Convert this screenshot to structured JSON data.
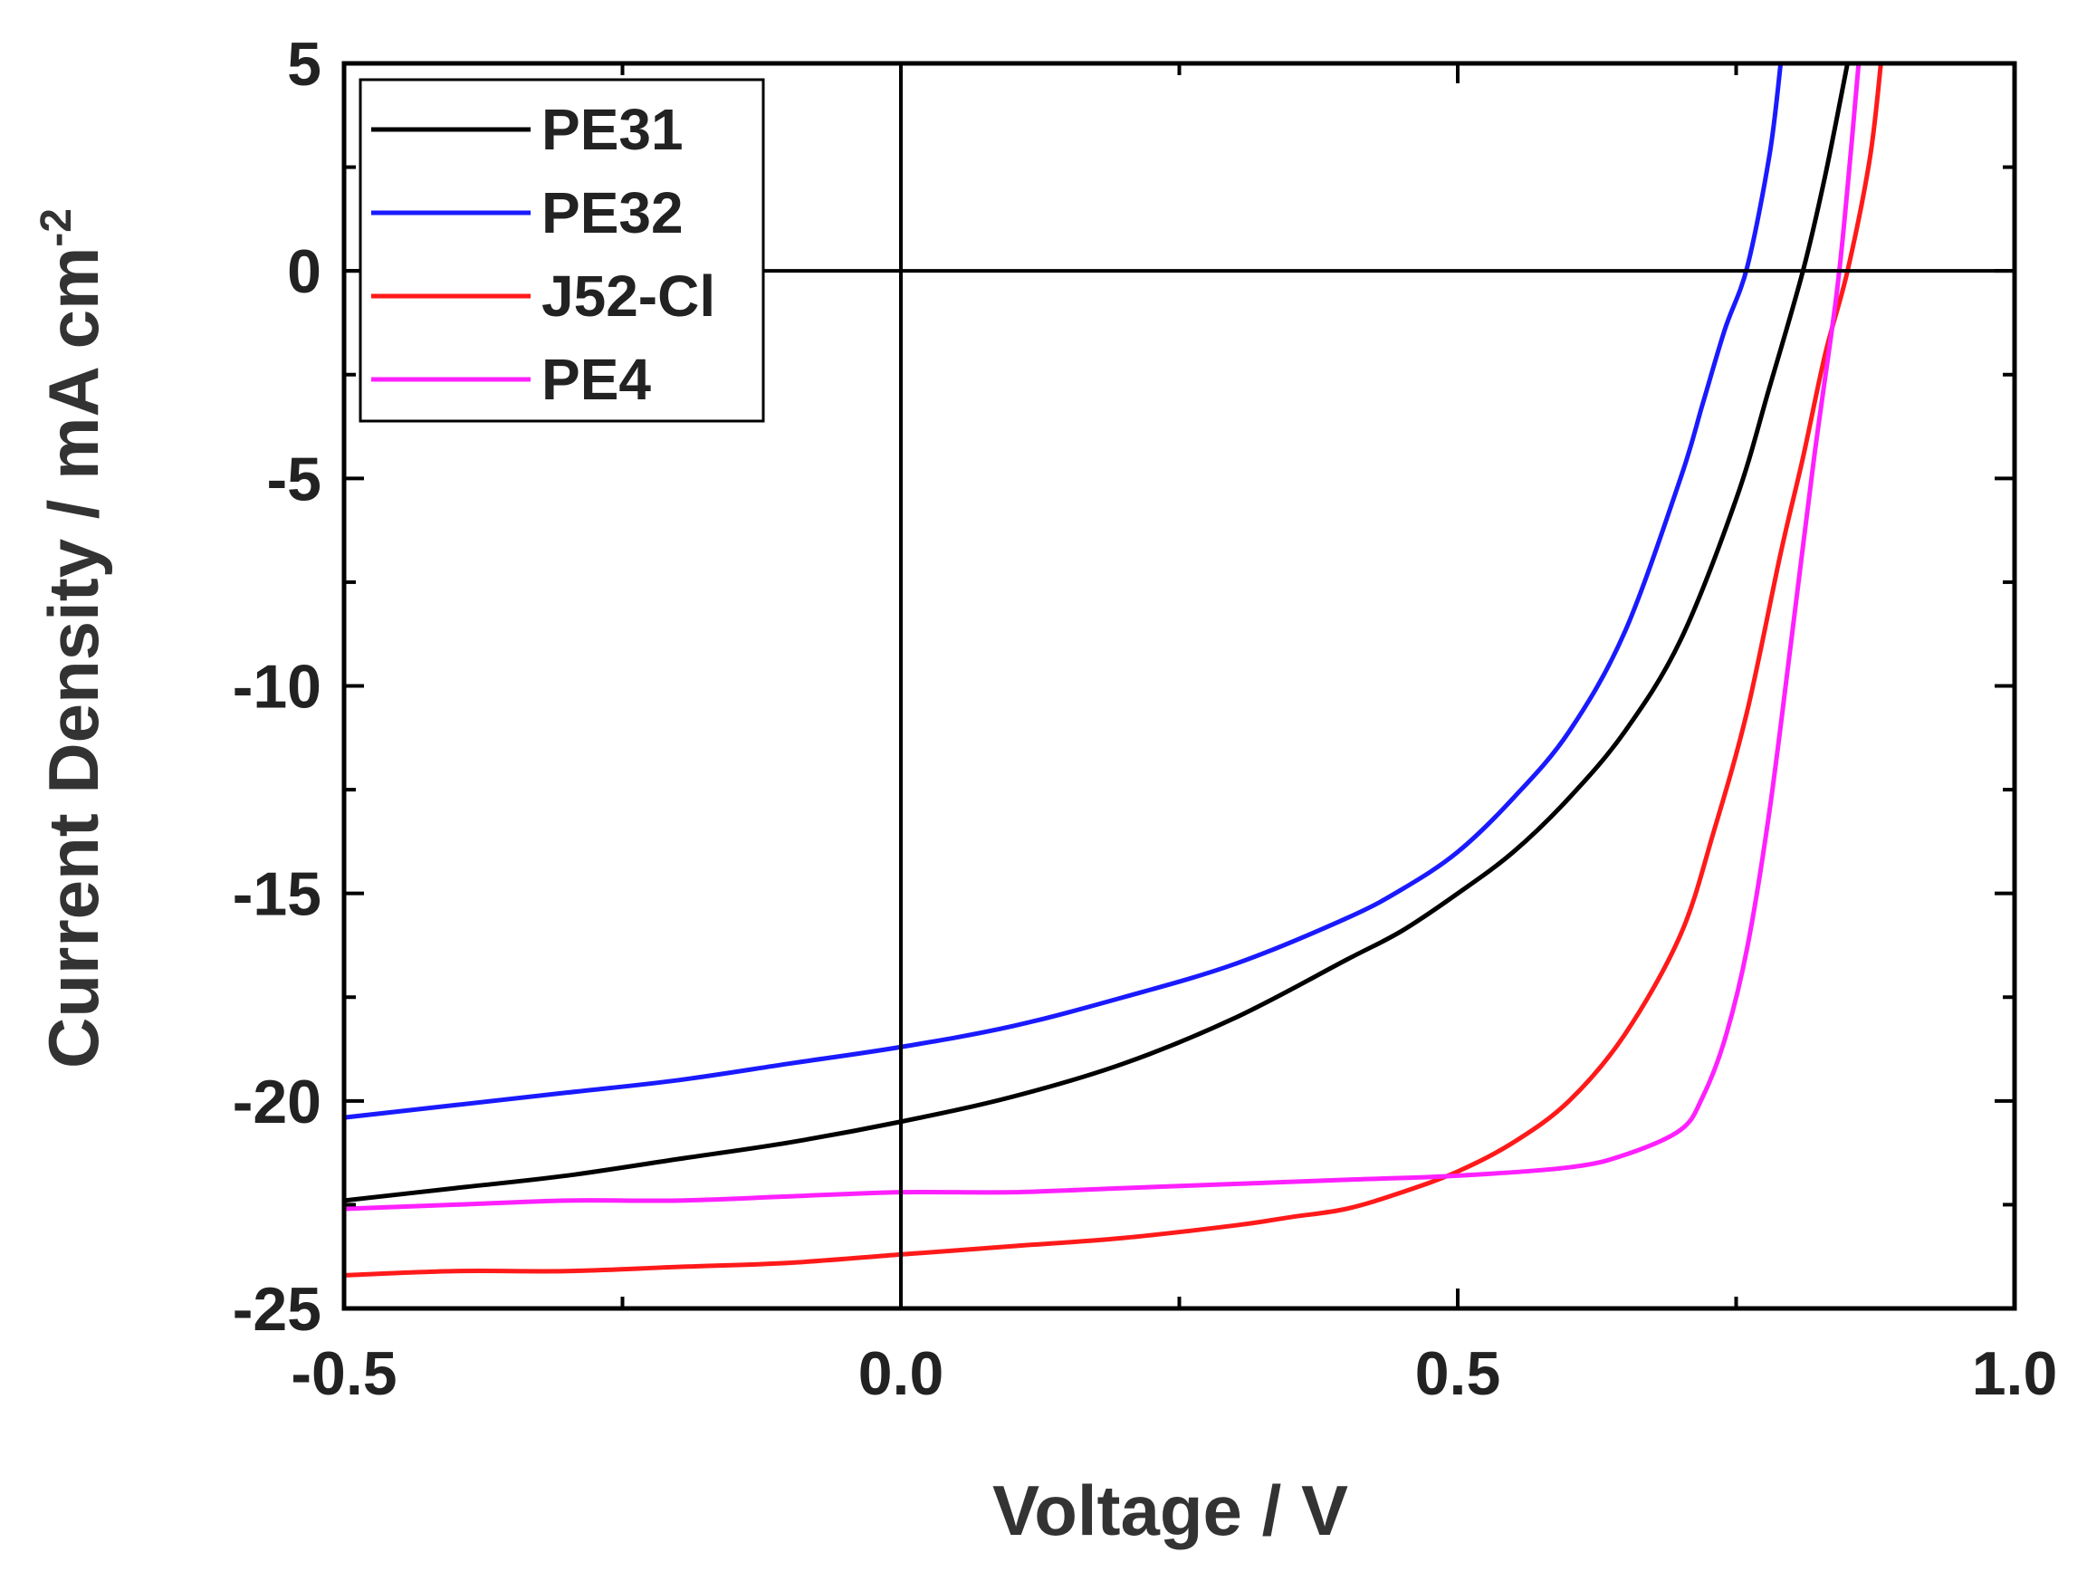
{
  "chart_data": {
    "type": "line",
    "title": "",
    "xlabel": "Voltage / V",
    "ylabel": "Current Density / mA cm",
    "ylabel_superscript": "-2",
    "xlim": [
      -0.5,
      1.0
    ],
    "ylim": [
      -25,
      5
    ],
    "xticks": [
      -0.5,
      0.0,
      0.5,
      1.0
    ],
    "xtick_labels": [
      "-0.5",
      "0.0",
      "0.5",
      "1.0"
    ],
    "yticks": [
      -25,
      -20,
      -15,
      -10,
      -5,
      0,
      5
    ],
    "ytick_labels": [
      "-25",
      "-20",
      "-15",
      "-10",
      "-5",
      "0",
      "5"
    ],
    "reference_lines": {
      "x": 0,
      "y": 0
    },
    "grid": false,
    "legend_position": "top-left",
    "series": [
      {
        "name": "PE31",
        "color": "#000000",
        "x": [
          -0.5,
          -0.4,
          -0.3,
          -0.2,
          -0.1,
          0.0,
          0.1,
          0.2,
          0.3,
          0.4,
          0.45,
          0.5,
          0.55,
          0.6,
          0.65,
          0.7,
          0.75,
          0.78,
          0.81,
          0.83,
          0.85
        ],
        "y": [
          -22.4,
          -22.1,
          -21.8,
          -21.4,
          -21.0,
          -20.5,
          -19.9,
          -19.1,
          -18.0,
          -16.6,
          -15.9,
          -15.0,
          -14.0,
          -12.7,
          -11.1,
          -8.9,
          -5.5,
          -2.8,
          0.0,
          2.3,
          5.0
        ]
      },
      {
        "name": "PE32",
        "color": "#1a1aff",
        "x": [
          -0.5,
          -0.4,
          -0.3,
          -0.2,
          -0.1,
          0.0,
          0.1,
          0.2,
          0.3,
          0.4,
          0.45,
          0.5,
          0.55,
          0.6,
          0.65,
          0.7,
          0.72,
          0.74,
          0.76,
          0.78,
          0.79
        ],
        "y": [
          -20.4,
          -20.1,
          -19.8,
          -19.5,
          -19.1,
          -18.7,
          -18.2,
          -17.5,
          -16.7,
          -15.6,
          -14.9,
          -14.0,
          -12.7,
          -11.1,
          -8.7,
          -5.0,
          -3.2,
          -1.4,
          0.1,
          2.8,
          5.0
        ]
      },
      {
        "name": "J52-Cl",
        "color": "#ff1a1a",
        "x": [
          -0.5,
          -0.4,
          -0.3,
          -0.2,
          -0.1,
          0.0,
          0.1,
          0.2,
          0.3,
          0.35,
          0.4,
          0.45,
          0.5,
          0.55,
          0.6,
          0.65,
          0.7,
          0.73,
          0.76,
          0.79,
          0.81,
          0.83,
          0.85,
          0.87,
          0.88
        ],
        "y": [
          -24.2,
          -24.1,
          -24.1,
          -24.0,
          -23.9,
          -23.7,
          -23.5,
          -23.3,
          -23.0,
          -22.8,
          -22.6,
          -22.2,
          -21.7,
          -21.0,
          -20.0,
          -18.4,
          -16.0,
          -13.5,
          -10.6,
          -6.8,
          -4.5,
          -2.0,
          0.0,
          2.7,
          5.0
        ]
      },
      {
        "name": "PE4",
        "color": "#ff20ff",
        "x": [
          -0.5,
          -0.4,
          -0.3,
          -0.2,
          -0.1,
          0.0,
          0.1,
          0.2,
          0.3,
          0.4,
          0.5,
          0.6,
          0.65,
          0.7,
          0.72,
          0.74,
          0.76,
          0.78,
          0.8,
          0.82,
          0.84,
          0.85,
          0.86
        ],
        "y": [
          -22.6,
          -22.5,
          -22.4,
          -22.4,
          -22.3,
          -22.2,
          -22.2,
          -22.1,
          -22.0,
          -21.9,
          -21.8,
          -21.6,
          -21.3,
          -20.7,
          -19.9,
          -18.5,
          -16.3,
          -13.0,
          -8.8,
          -4.5,
          -0.6,
          2.0,
          5.0
        ]
      }
    ]
  }
}
